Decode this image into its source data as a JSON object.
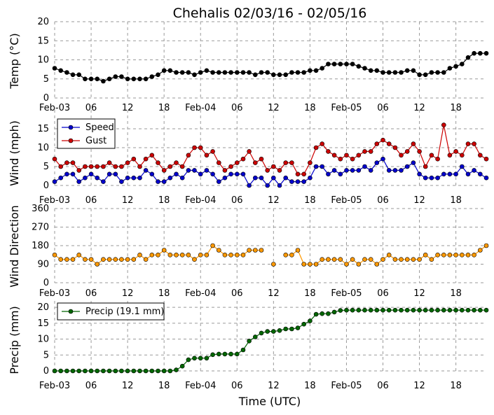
{
  "title": "Chehalis 02/03/16 - 02/05/16",
  "xlabel": "Time (UTC)",
  "x_tick_labels": [
    "Feb-03",
    "06",
    "12",
    "18",
    "Feb-04",
    "06",
    "12",
    "18",
    "Feb-05",
    "06",
    "12",
    "18"
  ],
  "x_tick_hours": [
    0,
    6,
    12,
    18,
    24,
    30,
    36,
    42,
    48,
    54,
    60,
    66
  ],
  "x_range_hours": [
    0,
    71
  ],
  "chart_data": [
    {
      "type": "line",
      "name": "temperature",
      "ylabel": "Temp (°C)",
      "ylim": [
        0,
        20
      ],
      "yticks": [
        0,
        5,
        10,
        15,
        20
      ],
      "grid": true,
      "series": [
        {
          "name": "",
          "color": "#000000",
          "x": [
            0,
            1,
            2,
            3,
            4,
            5,
            6,
            7,
            8,
            9,
            10,
            11,
            12,
            13,
            14,
            15,
            16,
            17,
            18,
            19,
            20,
            21,
            22,
            23,
            24,
            25,
            26,
            27,
            28,
            29,
            30,
            31,
            32,
            33,
            34,
            35,
            36,
            37,
            38,
            39,
            40,
            41,
            42,
            43,
            44,
            45,
            46,
            47,
            48,
            49,
            50,
            51,
            52,
            53,
            54,
            55,
            56,
            57,
            58,
            59,
            60,
            61,
            62,
            63,
            64,
            65,
            66,
            67,
            68,
            69,
            70,
            71
          ],
          "values": [
            7.8,
            7.2,
            6.7,
            6.1,
            6.1,
            5.0,
            5.0,
            5.0,
            4.4,
            5.0,
            5.6,
            5.6,
            5.0,
            5.0,
            5.0,
            5.0,
            5.6,
            6.1,
            7.2,
            7.2,
            6.7,
            6.7,
            6.7,
            6.1,
            6.7,
            7.2,
            6.7,
            6.7,
            6.7,
            6.7,
            6.7,
            6.7,
            6.7,
            6.1,
            6.7,
            6.7,
            6.1,
            6.1,
            6.1,
            6.7,
            6.7,
            6.7,
            7.2,
            7.2,
            7.8,
            8.9,
            8.9,
            8.9,
            8.9,
            8.9,
            8.3,
            7.8,
            7.2,
            7.2,
            6.7,
            6.7,
            6.7,
            6.7,
            7.2,
            7.2,
            6.1,
            6.1,
            6.7,
            6.7,
            6.7,
            7.8,
            8.3,
            8.9,
            10.6,
            11.7,
            11.7,
            11.7
          ]
        }
      ]
    },
    {
      "type": "line",
      "name": "wind",
      "ylabel": "Wind (mph)",
      "ylim": [
        0,
        20
      ],
      "yticks": [
        0,
        5,
        10,
        15
      ],
      "grid": true,
      "legend": "top-left",
      "series": [
        {
          "name": "Speed",
          "color": "#0000cc",
          "x": [
            0,
            1,
            2,
            3,
            4,
            5,
            6,
            7,
            8,
            9,
            10,
            11,
            12,
            13,
            14,
            15,
            16,
            17,
            18,
            19,
            20,
            21,
            22,
            23,
            24,
            25,
            26,
            27,
            28,
            29,
            30,
            31,
            32,
            33,
            34,
            35,
            36,
            37,
            38,
            39,
            40,
            41,
            42,
            43,
            44,
            45,
            46,
            47,
            48,
            49,
            50,
            51,
            52,
            53,
            54,
            55,
            56,
            57,
            58,
            59,
            60,
            61,
            62,
            63,
            64,
            65,
            66,
            67,
            68,
            69,
            70,
            71
          ],
          "values": [
            1,
            2,
            3,
            3,
            1,
            2,
            3,
            2,
            1,
            3,
            3,
            1,
            2,
            2,
            2,
            4,
            3,
            1,
            1,
            2,
            3,
            2,
            4,
            4,
            3,
            4,
            3,
            1,
            2,
            3,
            3,
            3,
            0,
            2,
            2,
            0,
            2,
            0,
            2,
            1,
            1,
            1,
            2,
            5,
            5,
            3,
            4,
            3,
            4,
            4,
            4,
            5,
            4,
            6,
            7,
            4,
            4,
            4,
            5,
            6,
            3,
            2,
            2,
            2,
            3,
            3,
            3,
            5,
            3,
            4,
            3,
            2
          ]
        },
        {
          "name": "Gust",
          "color": "#cc0000",
          "x": [
            0,
            1,
            2,
            3,
            4,
            5,
            6,
            7,
            8,
            9,
            10,
            11,
            12,
            13,
            14,
            15,
            16,
            17,
            18,
            19,
            20,
            21,
            22,
            23,
            24,
            25,
            26,
            27,
            28,
            29,
            30,
            31,
            32,
            33,
            34,
            35,
            36,
            37,
            38,
            39,
            40,
            41,
            42,
            43,
            44,
            45,
            46,
            47,
            48,
            49,
            50,
            51,
            52,
            53,
            54,
            55,
            56,
            57,
            58,
            59,
            60,
            61,
            62,
            63,
            64,
            65,
            66,
            67,
            68,
            69,
            70,
            71
          ],
          "values": [
            7,
            5,
            6,
            6,
            4,
            5,
            5,
            5,
            5,
            6,
            5,
            5,
            6,
            7,
            5,
            7,
            8,
            6,
            4,
            5,
            6,
            5,
            8,
            10,
            10,
            8,
            9,
            6,
            4,
            5,
            6,
            7,
            9,
            6,
            7,
            4,
            5,
            4,
            6,
            6,
            3,
            3,
            6,
            10,
            11,
            9,
            8,
            7,
            8,
            7,
            8,
            9,
            9,
            11,
            12,
            11,
            10,
            8,
            9,
            11,
            9,
            5,
            8,
            7,
            16,
            8,
            9,
            8,
            11,
            11,
            8,
            7
          ]
        }
      ]
    },
    {
      "type": "line",
      "name": "wind_direction",
      "ylabel": "Wind Direction",
      "ylim": [
        0,
        360
      ],
      "yticks": [
        0,
        90,
        180,
        270,
        360
      ],
      "grid": true,
      "series": [
        {
          "name": "",
          "color": "#ff9900",
          "x": [
            0,
            1,
            2,
            3,
            4,
            5,
            6,
            7,
            8,
            9,
            10,
            11,
            12,
            13,
            14,
            15,
            16,
            17,
            18,
            19,
            20,
            21,
            22,
            23,
            24,
            25,
            26,
            27,
            28,
            29,
            30,
            31,
            32,
            33,
            34,
            35,
            36,
            37,
            38,
            39,
            40,
            41,
            42,
            43,
            44,
            45,
            46,
            47,
            48,
            49,
            50,
            51,
            52,
            53,
            54,
            55,
            56,
            57,
            58,
            59,
            60,
            61,
            62,
            63,
            64,
            65,
            66,
            67,
            68,
            69,
            70,
            71
          ],
          "values": [
            135,
            113,
            113,
            113,
            135,
            113,
            113,
            90,
            113,
            113,
            113,
            113,
            113,
            113,
            135,
            113,
            135,
            135,
            158,
            135,
            135,
            135,
            135,
            113,
            135,
            135,
            180,
            158,
            135,
            135,
            135,
            135,
            158,
            158,
            158,
            null,
            90,
            null,
            135,
            135,
            158,
            90,
            90,
            90,
            113,
            113,
            113,
            113,
            90,
            113,
            90,
            113,
            113,
            90,
            113,
            135,
            113,
            113,
            113,
            113,
            113,
            135,
            113,
            135,
            135,
            135,
            135,
            135,
            135,
            135,
            158,
            180
          ]
        }
      ]
    },
    {
      "type": "line",
      "name": "precipitation",
      "ylabel": "Precip (mm)",
      "ylim": [
        0,
        22
      ],
      "yticks": [
        0,
        5,
        10,
        15,
        20
      ],
      "grid": true,
      "legend": "top-left",
      "series": [
        {
          "name": "Precip (19.1 mm)",
          "color": "#006600",
          "x": [
            0,
            1,
            2,
            3,
            4,
            5,
            6,
            7,
            8,
            9,
            10,
            11,
            12,
            13,
            14,
            15,
            16,
            17,
            18,
            19,
            20,
            21,
            22,
            23,
            24,
            25,
            26,
            27,
            28,
            29,
            30,
            31,
            32,
            33,
            34,
            35,
            36,
            37,
            38,
            39,
            40,
            41,
            42,
            43,
            44,
            45,
            46,
            47,
            48,
            49,
            50,
            51,
            52,
            53,
            54,
            55,
            56,
            57,
            58,
            59,
            60,
            61,
            62,
            63,
            64,
            65,
            66,
            67,
            68,
            69,
            70,
            71
          ],
          "values": [
            0,
            0,
            0,
            0,
            0,
            0,
            0,
            0,
            0,
            0,
            0,
            0,
            0,
            0,
            0,
            0,
            0,
            0,
            0,
            0,
            0.3,
            1.5,
            3.5,
            4.0,
            4.0,
            4.0,
            5.1,
            5.3,
            5.3,
            5.3,
            5.3,
            6.6,
            9.4,
            10.7,
            11.9,
            12.4,
            12.4,
            12.7,
            13.2,
            13.2,
            13.5,
            14.7,
            15.7,
            17.8,
            18.0,
            18.0,
            18.5,
            19.0,
            19.1,
            19.1,
            19.1,
            19.1,
            19.1,
            19.1,
            19.1,
            19.1,
            19.1,
            19.1,
            19.1,
            19.1,
            19.1,
            19.1,
            19.1,
            19.1,
            19.1,
            19.1,
            19.1,
            19.1,
            19.1,
            19.1,
            19.1,
            19.1
          ]
        }
      ]
    }
  ]
}
